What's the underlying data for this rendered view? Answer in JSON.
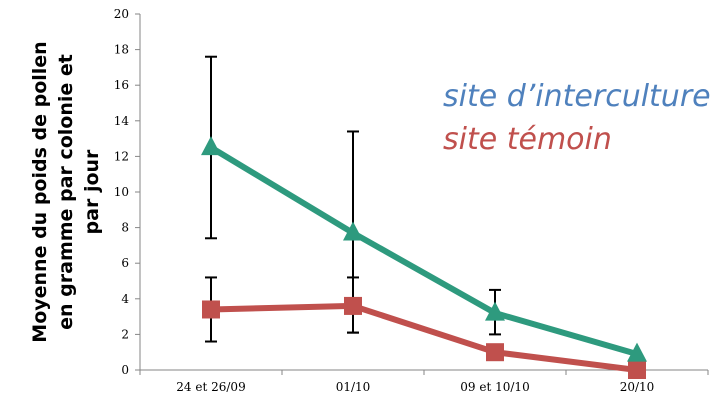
{
  "chart_data": {
    "type": "line",
    "title": "",
    "xlabel": "",
    "ylabel_lines": [
      "Moyenne du poids de pollen",
      "en gramme par colonie et",
      "par jour"
    ],
    "categories": [
      "24 et 26/09",
      "01/10",
      "09 et 10/10",
      "20/10"
    ],
    "ylim": [
      0,
      20
    ],
    "yticks": [
      "0",
      "2",
      "4",
      "6",
      "8",
      "10",
      "12",
      "14",
      "16",
      "18",
      "20"
    ],
    "grid": false,
    "legend_position": "top-right",
    "series": [
      {
        "name": "site d’interculture",
        "color": "#2e9a7e",
        "marker": "triangle",
        "values": [
          12.5,
          7.7,
          3.2,
          0.9
        ],
        "err_low": [
          7.4,
          2.1,
          2.0,
          0.9
        ],
        "err_high": [
          17.6,
          13.4,
          4.5,
          0.9
        ]
      },
      {
        "name": "site témoin",
        "color": "#c0504d",
        "marker": "square",
        "values": [
          3.4,
          3.6,
          1.0,
          0.0
        ],
        "err_low": [
          1.6,
          2.1,
          1.0,
          0.0
        ],
        "err_high": [
          5.2,
          5.2,
          1.0,
          0.0
        ]
      }
    ]
  }
}
